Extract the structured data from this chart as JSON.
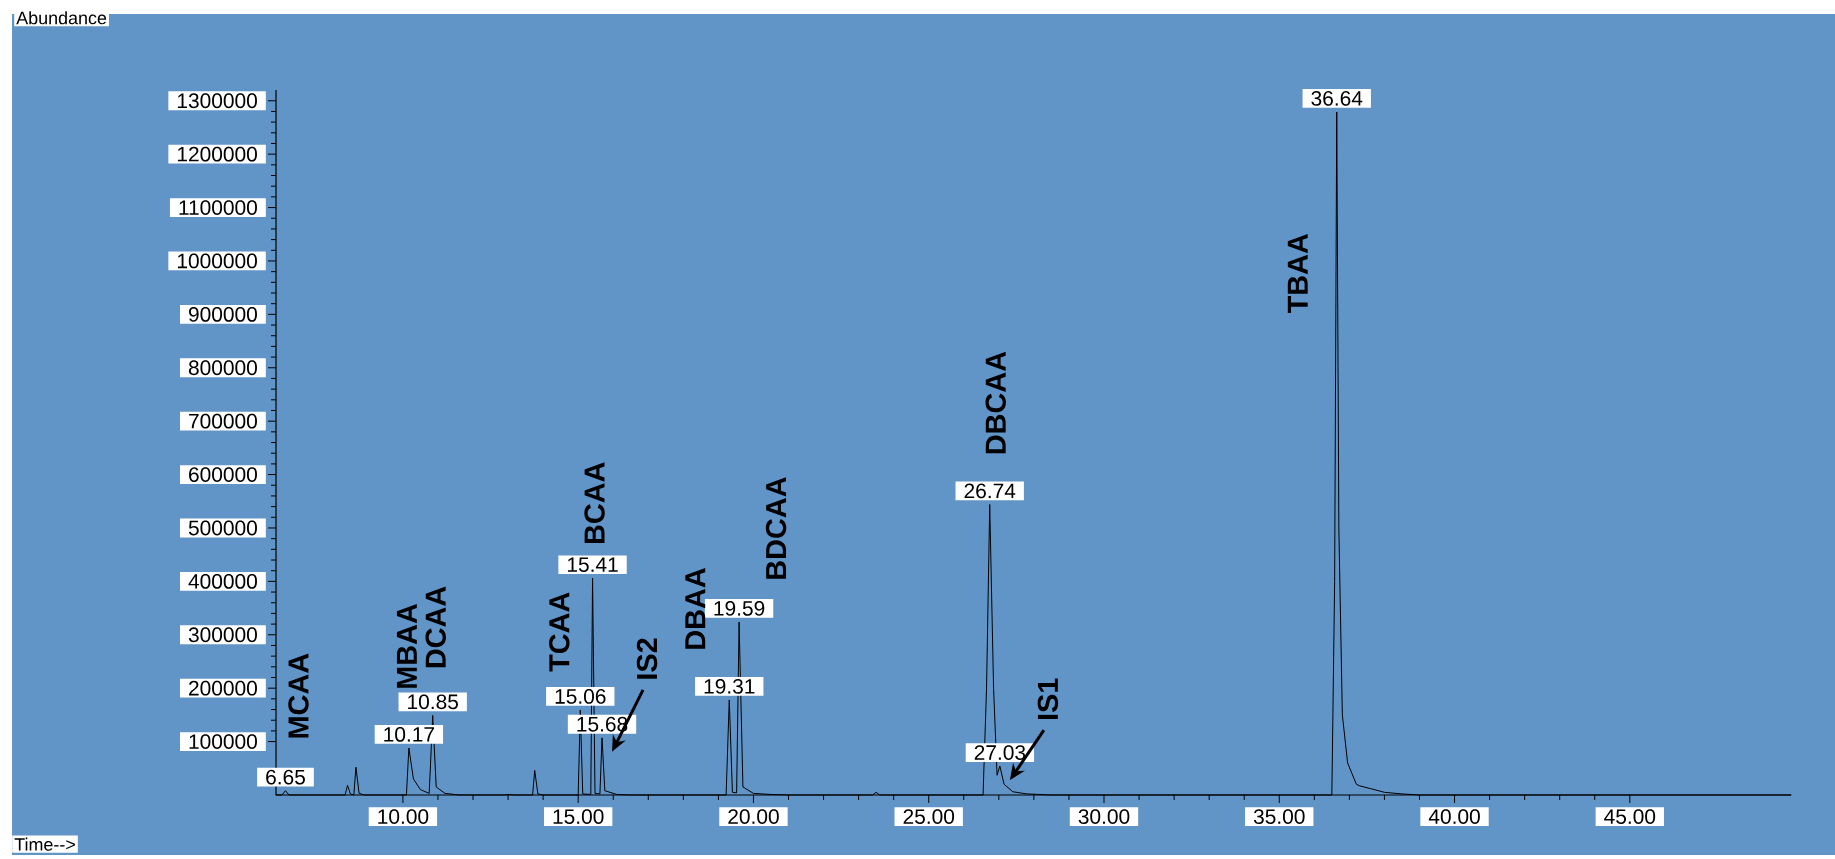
{
  "chart_data": {
    "type": "line",
    "series": [
      {
        "color": "#000000",
        "x": [
          6.38,
          6.55,
          6.65,
          6.75,
          8.35,
          8.42,
          8.5,
          8.6,
          8.66,
          8.75,
          8.9,
          10.1,
          10.17,
          10.3,
          10.5,
          10.75,
          10.85,
          10.95,
          11.2,
          11.6,
          12.9,
          13.0,
          13.2,
          13.7,
          13.76,
          13.85,
          14.0,
          15.0,
          15.06,
          15.13,
          15.36,
          15.41,
          15.48,
          15.62,
          15.68,
          15.76,
          16.1,
          16.5,
          19.22,
          19.31,
          19.4,
          19.52,
          19.59,
          19.7,
          20.0,
          20.5,
          21.0,
          23.4,
          23.5,
          23.6,
          26.55,
          26.65,
          26.74,
          26.85,
          26.95,
          27.03,
          27.15,
          27.4,
          27.8,
          28.5,
          36.5,
          36.58,
          36.64,
          36.7,
          36.8,
          36.95,
          37.2,
          37.3,
          37.6,
          38.0,
          38.5,
          39.0,
          49.6
        ],
        "values": [
          0,
          0,
          8000,
          0,
          0,
          18000,
          2000,
          0,
          52000,
          3000,
          0,
          0,
          88000,
          30000,
          10000,
          3000,
          149000,
          15000,
          3000,
          0,
          0,
          1000,
          0,
          0,
          46000,
          2000,
          0,
          0,
          159000,
          2000,
          1000,
          406000,
          3000,
          2000,
          107000,
          8000,
          1000,
          0,
          0,
          178000,
          5000,
          4000,
          324000,
          15000,
          3000,
          1000,
          0,
          0,
          5000,
          0,
          0,
          200000,
          544000,
          200000,
          37000,
          54000,
          20000,
          6000,
          2000,
          0,
          0,
          400000,
          1279000,
          500000,
          150000,
          60000,
          20000,
          17000,
          12000,
          5000,
          2000,
          0,
          0
        ]
      }
    ],
    "xlim": [
      6.38,
      49.6
    ],
    "ylim": [
      0,
      1320000
    ],
    "xticks": [
      {
        "value": 10,
        "label": "10.00"
      },
      {
        "value": 15,
        "label": "15.00"
      },
      {
        "value": 20,
        "label": "20.00"
      },
      {
        "value": 25,
        "label": "25.00"
      },
      {
        "value": 30,
        "label": "30.00"
      },
      {
        "value": 35,
        "label": "35.00"
      },
      {
        "value": 40,
        "label": "40.00"
      },
      {
        "value": 45,
        "label": "45.00"
      }
    ],
    "yticks": [
      100000,
      200000,
      300000,
      400000,
      500000,
      600000,
      700000,
      800000,
      900000,
      1000000,
      1100000,
      1200000,
      1300000
    ],
    "annotations": [
      {
        "text": "6.65",
        "x": 6.65,
        "y": 8000
      },
      {
        "text": "10.17",
        "x": 10.17,
        "y": 88000
      },
      {
        "text": "10.85",
        "x": 10.85,
        "y": 149000
      },
      {
        "text": "15.06",
        "x": 15.06,
        "y": 159000
      },
      {
        "text": "15.41",
        "x": 15.41,
        "y": 406000
      },
      {
        "text": "15.68",
        "x": 15.68,
        "y": 107000
      },
      {
        "text": "19.31",
        "x": 19.31,
        "y": 178000
      },
      {
        "text": "19.59",
        "x": 19.59,
        "y": 324000
      },
      {
        "text": "26.74",
        "x": 26.74,
        "y": 544000
      },
      {
        "text": "27.03",
        "x": 27.03,
        "y": 54000
      },
      {
        "text": "36.64",
        "x": 36.64,
        "y": 1279000
      },
      "MCAA",
      "MBAA",
      "DCAA",
      "TCAA",
      "BCAA",
      "IS2",
      "DBAA",
      "BDCAA",
      "DBCAA",
      "IS1",
      "TBAA",
      "Abundance",
      "Time-->"
    ]
  }
}
